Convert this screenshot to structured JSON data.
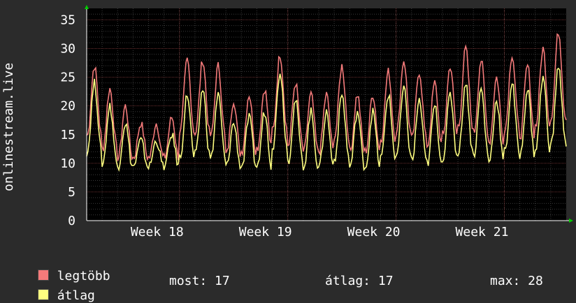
{
  "chart_data": {
    "type": "line",
    "ylabel": "onlinestream.live",
    "ylim": [
      0,
      37
    ],
    "yticks": [
      0,
      5,
      10,
      15,
      20,
      25,
      30,
      35
    ],
    "xlim_days": [
      0,
      31
    ],
    "xticks": [
      {
        "label": "Week 18",
        "day": 6
      },
      {
        "label": "Week 19",
        "day": 13
      },
      {
        "label": "Week 20",
        "day": 20
      },
      {
        "label": "Week 21",
        "day": 27
      }
    ],
    "grid": true,
    "series": [
      {
        "name": "legtöbb",
        "color": "#f47a7a",
        "daily_peaks": [
          27,
          23,
          20,
          17,
          17,
          18,
          28,
          28,
          27,
          21,
          22,
          23,
          29,
          24,
          22,
          22,
          27,
          22,
          22,
          26,
          28,
          26,
          24,
          27,
          30,
          28,
          25,
          29,
          27,
          30,
          33
        ]
      },
      {
        "name": "átlag",
        "color": "#ffff80",
        "daily_peaks": [
          24,
          20,
          17,
          14,
          14,
          15,
          22,
          23,
          22,
          17,
          18,
          19,
          26,
          21,
          19,
          19,
          22,
          19,
          19,
          22,
          23,
          21,
          20,
          22,
          24,
          23,
          21,
          24,
          23,
          25,
          27
        ]
      }
    ]
  },
  "legend": {
    "max_label": "legtöbb",
    "avg_label": "átlag",
    "max_color": "#f47a7a",
    "avg_color": "#ffff80"
  },
  "stats": {
    "most": "most: 17",
    "atlag": "átlag: 17",
    "max": "max: 28"
  }
}
